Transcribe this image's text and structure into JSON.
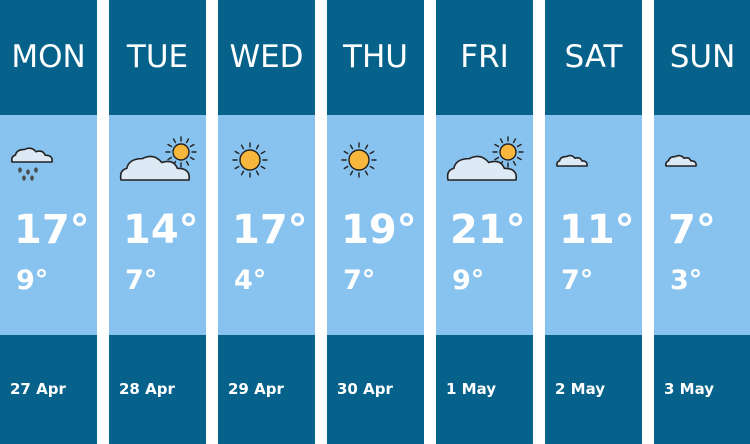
{
  "forecast": {
    "days": [
      {
        "day": "MON",
        "high": "17°",
        "low": "9°",
        "date": "27 Apr"
      },
      {
        "day": "TUE",
        "high": "14°",
        "low": "7°",
        "date": "28 Apr"
      },
      {
        "day": "WED",
        "high": "17°",
        "low": "4°",
        "date": "29 Apr"
      },
      {
        "day": "THU",
        "high": "19°",
        "low": "7°",
        "date": "30 Apr"
      },
      {
        "day": "FRI",
        "high": "21°",
        "low": "9°",
        "date": "1 May"
      },
      {
        "day": "SAT",
        "high": "11°",
        "low": "7°",
        "date": "2 May"
      },
      {
        "day": "SUN",
        "high": "7°",
        "low": "3°",
        "date": "3 May"
      }
    ]
  }
}
